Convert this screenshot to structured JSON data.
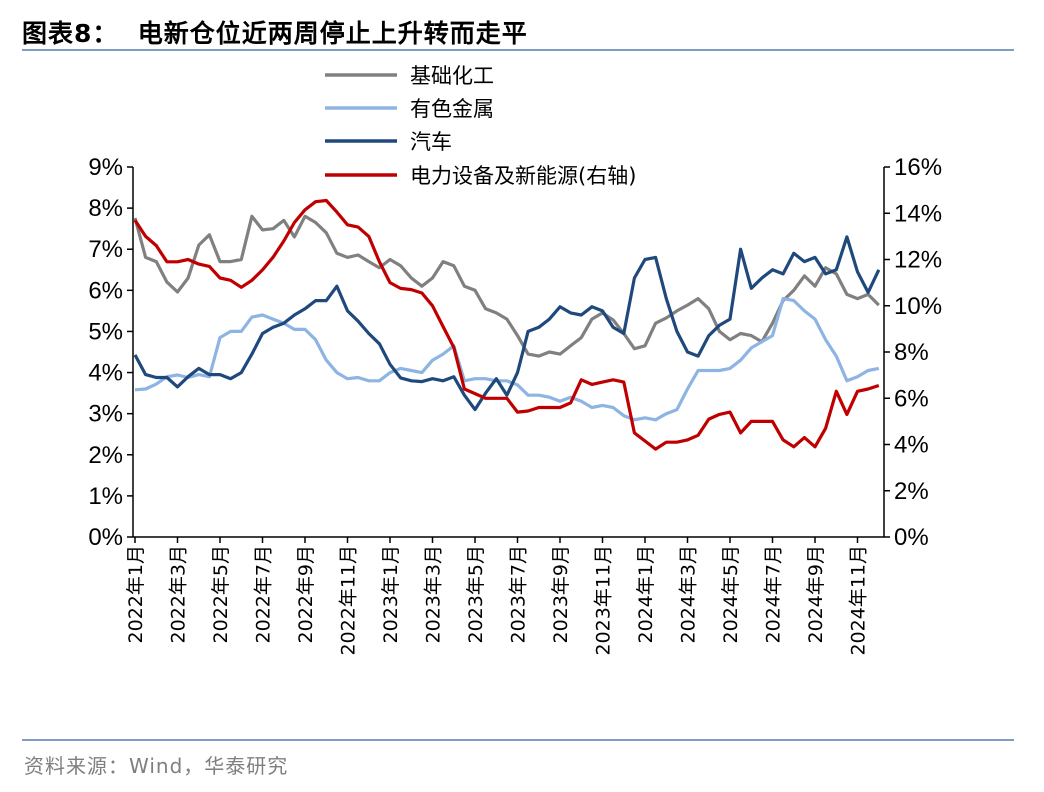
{
  "header": {
    "title": "图表8：  电新仓位近两周停止上升转而走平"
  },
  "footer": {
    "source": "资料来源：Wind，华泰研究"
  },
  "chart_data": {
    "type": "line",
    "title": "图表8：  电新仓位近两周停止上升转而走平",
    "left_axis": {
      "ylim": [
        0,
        9
      ],
      "ticks": [
        "0%",
        "1%",
        "2%",
        "3%",
        "4%",
        "5%",
        "6%",
        "7%",
        "8%",
        "9%"
      ],
      "unit": "%"
    },
    "right_axis": {
      "ylim": [
        0,
        16
      ],
      "ticks": [
        "0%",
        "2%",
        "4%",
        "6%",
        "8%",
        "10%",
        "12%",
        "14%",
        "16%"
      ],
      "unit": "%"
    },
    "x_tick_labels": [
      "2022年1月",
      "2022年3月",
      "2022年5月",
      "2022年7月",
      "2022年9月",
      "2022年11月",
      "2023年1月",
      "2023年3月",
      "2023年5月",
      "2023年7月",
      "2023年9月",
      "2023年11月",
      "2024年1月",
      "2024年3月",
      "2024年5月",
      "2024年7月",
      "2024年9月",
      "2024年11月"
    ],
    "x_range": [
      "2022-01-01",
      "2024-12-10"
    ],
    "grid": false,
    "legend_placement": "top-center",
    "x": [
      "2022-01-01",
      "2022-01-16",
      "2022-02-01",
      "2022-02-16",
      "2022-03-01",
      "2022-03-16",
      "2022-04-01",
      "2022-04-16",
      "2022-05-01",
      "2022-05-16",
      "2022-06-01",
      "2022-06-16",
      "2022-07-01",
      "2022-07-16",
      "2022-08-01",
      "2022-08-16",
      "2022-09-01",
      "2022-09-16",
      "2022-10-01",
      "2022-10-16",
      "2022-11-01",
      "2022-11-16",
      "2022-12-01",
      "2022-12-16",
      "2023-01-01",
      "2023-01-16",
      "2023-02-01",
      "2023-02-16",
      "2023-03-01",
      "2023-03-16",
      "2023-04-01",
      "2023-04-16",
      "2023-05-01",
      "2023-05-16",
      "2023-06-01",
      "2023-06-16",
      "2023-07-01",
      "2023-07-16",
      "2023-08-01",
      "2023-08-16",
      "2023-09-01",
      "2023-09-16",
      "2023-10-01",
      "2023-10-16",
      "2023-11-01",
      "2023-11-16",
      "2023-12-01",
      "2023-12-16",
      "2024-01-01",
      "2024-01-16",
      "2024-02-01",
      "2024-02-16",
      "2024-03-01",
      "2024-03-16",
      "2024-04-01",
      "2024-04-16",
      "2024-05-01",
      "2024-05-16",
      "2024-06-01",
      "2024-06-16",
      "2024-07-01",
      "2024-07-16",
      "2024-08-01",
      "2024-08-16",
      "2024-09-01",
      "2024-09-16",
      "2024-10-01",
      "2024-10-16",
      "2024-11-01",
      "2024-11-16",
      "2024-12-01"
    ],
    "series": [
      {
        "name": "基础化工",
        "axis": "left",
        "color": "#808080",
        "values": [
          7.76,
          6.8,
          6.7,
          6.2,
          5.96,
          6.3,
          7.1,
          7.35,
          6.7,
          6.7,
          6.75,
          7.8,
          7.47,
          7.5,
          7.7,
          7.3,
          7.8,
          7.65,
          7.4,
          6.9,
          6.8,
          6.86,
          6.7,
          6.55,
          6.75,
          6.6,
          6.3,
          6.1,
          6.3,
          6.7,
          6.6,
          6.1,
          6.0,
          5.55,
          5.45,
          5.3,
          4.9,
          4.45,
          4.4,
          4.5,
          4.45,
          4.65,
          4.85,
          5.3,
          5.45,
          5.28,
          4.95,
          4.58,
          4.65,
          5.2,
          5.33,
          5.5,
          5.64,
          5.8,
          5.55,
          5.0,
          4.8,
          4.95,
          4.9,
          4.75,
          5.2,
          5.75,
          6.0,
          6.35,
          6.1,
          6.55,
          6.4,
          5.9,
          5.8,
          5.9,
          5.64
        ]
      },
      {
        "name": "有色金属",
        "axis": "left",
        "color": "#8db4e2",
        "values": [
          3.58,
          3.6,
          3.72,
          3.9,
          3.94,
          3.88,
          3.95,
          3.9,
          4.85,
          5.0,
          5.0,
          5.35,
          5.4,
          5.3,
          5.2,
          5.05,
          5.05,
          4.8,
          4.3,
          4.0,
          3.85,
          3.88,
          3.8,
          3.8,
          4.0,
          4.1,
          4.05,
          4.0,
          4.3,
          4.45,
          4.65,
          3.8,
          3.85,
          3.85,
          3.8,
          3.8,
          3.7,
          3.45,
          3.45,
          3.4,
          3.3,
          3.4,
          3.3,
          3.15,
          3.2,
          3.15,
          2.95,
          2.85,
          2.9,
          2.85,
          3.0,
          3.1,
          3.6,
          4.05,
          4.05,
          4.05,
          4.1,
          4.3,
          4.6,
          4.75,
          4.9,
          5.8,
          5.75,
          5.5,
          5.3,
          4.8,
          4.4,
          3.8,
          3.9,
          4.05,
          4.1
        ]
      },
      {
        "name": "汽车",
        "axis": "left",
        "color": "#1f497d",
        "values": [
          4.43,
          3.95,
          3.88,
          3.88,
          3.65,
          3.9,
          4.1,
          3.95,
          3.95,
          3.85,
          4.0,
          4.45,
          4.95,
          5.1,
          5.2,
          5.4,
          5.55,
          5.75,
          5.75,
          6.1,
          5.5,
          5.25,
          4.95,
          4.7,
          4.2,
          3.87,
          3.8,
          3.78,
          3.85,
          3.8,
          3.9,
          3.45,
          3.1,
          3.5,
          3.85,
          3.45,
          4.0,
          5.0,
          5.1,
          5.3,
          5.6,
          5.45,
          5.4,
          5.6,
          5.5,
          5.1,
          4.95,
          6.3,
          6.75,
          6.8,
          5.8,
          5.0,
          4.5,
          4.4,
          4.9,
          5.15,
          5.3,
          7.0,
          6.05,
          6.3,
          6.5,
          6.4,
          6.9,
          6.7,
          6.8,
          6.4,
          6.5,
          7.3,
          6.45,
          5.95,
          6.5
        ]
      },
      {
        "name": "电力设备及新能源(右轴)",
        "axis": "right",
        "color": "#c00000",
        "values": [
          13.7,
          13.0,
          12.6,
          11.9,
          11.9,
          12.0,
          11.8,
          11.7,
          11.2,
          11.1,
          10.8,
          11.1,
          11.55,
          12.1,
          12.8,
          13.6,
          14.15,
          14.5,
          14.55,
          14.05,
          13.5,
          13.4,
          13.0,
          11.9,
          11.0,
          10.75,
          10.7,
          10.55,
          10.0,
          9.1,
          8.2,
          6.4,
          6.2,
          6.0,
          6.0,
          6.0,
          5.4,
          5.45,
          5.6,
          5.6,
          5.6,
          5.8,
          6.8,
          6.6,
          6.7,
          6.8,
          6.7,
          4.5,
          4.15,
          3.8,
          4.1,
          4.1,
          4.2,
          4.4,
          5.1,
          5.3,
          5.4,
          4.5,
          5.0,
          5.0,
          5.0,
          4.2,
          3.9,
          4.3,
          3.9,
          4.7,
          6.3,
          5.3,
          6.3,
          6.4,
          6.55
        ]
      }
    ]
  }
}
